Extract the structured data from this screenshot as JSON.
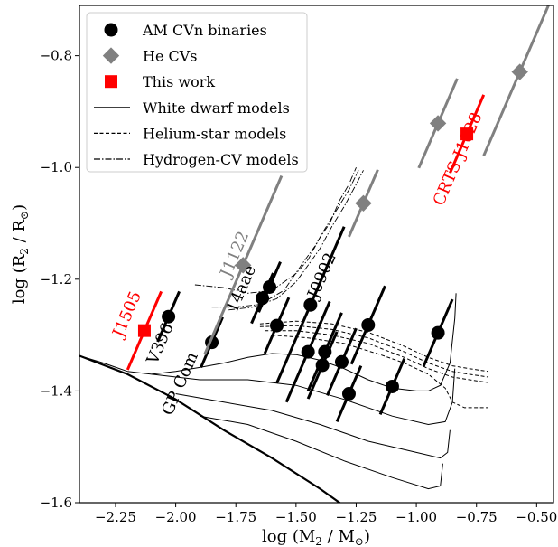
{
  "chart_data": {
    "type": "scatter",
    "xlabel": "log (M",
    "xlabel_sub": "2",
    "xlabel_mid": " / M",
    "xlabel_sub2": "⊙",
    "xlabel_end": ")",
    "ylabel": "log (R",
    "ylabel_sub": "2",
    "ylabel_mid": " / R",
    "ylabel_sub2": "⊙",
    "ylabel_end": ")",
    "xlim": [
      -2.4,
      -0.43
    ],
    "ylim": [
      -1.6,
      -0.71
    ],
    "xticks": [
      -2.25,
      -2.0,
      -1.75,
      -1.5,
      -1.25,
      -1.0,
      -0.75,
      -0.5
    ],
    "xtick_labels": [
      "−2.25",
      "−2.00",
      "−1.75",
      "−1.50",
      "−1.25",
      "−1.00",
      "−0.75",
      "−0.50"
    ],
    "yticks": [
      -1.6,
      -1.4,
      -1.2,
      -1.0,
      -0.8
    ],
    "ytick_labels": [
      "−1.6",
      "−1.4",
      "−1.2",
      "−1.0",
      "−0.8"
    ],
    "grid": false,
    "legend_position": "top-left",
    "legend": [
      {
        "label": "AM CVn binaries",
        "marker": "circle",
        "color": "#000000"
      },
      {
        "label": "He CVs",
        "marker": "diamond",
        "color": "#808080"
      },
      {
        "label": "This work",
        "marker": "square",
        "color": "#ff0000"
      },
      {
        "label": "White dwarf models",
        "line": "solid"
      },
      {
        "label": "Helium-star models",
        "line": "dashed"
      },
      {
        "label": "Hydrogen-CV models",
        "line": "dashdot"
      }
    ],
    "series": [
      {
        "name": "AM CVn binaries",
        "color": "#000000",
        "marker": "circle",
        "points": [
          {
            "x": -2.03,
            "y": -1.267,
            "err": 0.045,
            "label": "V396"
          },
          {
            "x": -1.85,
            "y": -1.313,
            "err": 0.045,
            "label": "GP Com"
          },
          {
            "x": -1.64,
            "y": -1.234,
            "err": 0.045,
            "label": "14aae"
          },
          {
            "x": -1.61,
            "y": -1.214,
            "err": 0.045
          },
          {
            "x": -1.58,
            "y": -1.283,
            "err": 0.05
          },
          {
            "x": -1.44,
            "y": -1.246,
            "err": 0.14,
            "label": "J0902"
          },
          {
            "x": -1.45,
            "y": -1.33,
            "err": 0.09
          },
          {
            "x": -1.38,
            "y": -1.33,
            "err": 0.07
          },
          {
            "x": -1.39,
            "y": -1.354,
            "err": 0.06
          },
          {
            "x": -1.31,
            "y": -1.348,
            "err": 0.06
          },
          {
            "x": -1.28,
            "y": -1.405,
            "err": 0.05
          },
          {
            "x": -1.2,
            "y": -1.282,
            "err": 0.07
          },
          {
            "x": -1.1,
            "y": -1.392,
            "err": 0.05
          },
          {
            "x": -0.91,
            "y": -1.296,
            "err": 0.06
          }
        ]
      },
      {
        "name": "He CVs",
        "color": "#808080",
        "marker": "diamond",
        "points": [
          {
            "x": -1.72,
            "y": -1.175,
            "err": 0.16,
            "label": "J1122"
          },
          {
            "x": -1.22,
            "y": -1.064,
            "err": 0.06
          },
          {
            "x": -0.91,
            "y": -0.921,
            "err": 0.08
          },
          {
            "x": -0.57,
            "y": -0.829,
            "err": 0.15
          }
        ]
      },
      {
        "name": "This work",
        "color": "#ff0000",
        "marker": "square",
        "points": [
          {
            "x": -2.13,
            "y": -1.292,
            "err": 0.07,
            "label": "J1505"
          },
          {
            "x": -0.79,
            "y": -0.94,
            "err": 0.07,
            "label": "CRTS J1028"
          }
        ]
      }
    ],
    "models": {
      "white_dwarf": [
        [
          [
            -2.4,
            -1.337
          ],
          [
            -2.2,
            -1.37
          ],
          [
            -2.0,
            -1.415
          ],
          [
            -1.8,
            -1.47
          ],
          [
            -1.6,
            -1.52
          ],
          [
            -1.4,
            -1.575
          ],
          [
            -1.27,
            -1.615
          ]
        ],
        [
          [
            -2.4,
            -1.337
          ],
          [
            -2.3,
            -1.35
          ],
          [
            -2.2,
            -1.365
          ],
          [
            -2.1,
            -1.37
          ],
          [
            -2.0,
            -1.365
          ],
          [
            -1.9,
            -1.358
          ],
          [
            -1.8,
            -1.35
          ],
          [
            -1.7,
            -1.34
          ],
          [
            -1.6,
            -1.333
          ],
          [
            -1.5,
            -1.335
          ],
          [
            -1.4,
            -1.345
          ],
          [
            -1.3,
            -1.36
          ],
          [
            -1.2,
            -1.38
          ],
          [
            -1.1,
            -1.395
          ],
          [
            -1.0,
            -1.4
          ],
          [
            -0.95,
            -1.4
          ],
          [
            -0.9,
            -1.39
          ],
          [
            -0.86,
            -1.35
          ],
          [
            -0.84,
            -1.27
          ],
          [
            -0.835,
            -1.225
          ]
        ],
        [
          [
            -2.1,
            -1.37
          ],
          [
            -1.9,
            -1.38
          ],
          [
            -1.7,
            -1.38
          ],
          [
            -1.5,
            -1.39
          ],
          [
            -1.3,
            -1.415
          ],
          [
            -1.1,
            -1.445
          ],
          [
            -0.95,
            -1.46
          ],
          [
            -0.88,
            -1.455
          ],
          [
            -0.85,
            -1.42
          ],
          [
            -0.84,
            -1.36
          ]
        ],
        [
          [
            -2.0,
            -1.405
          ],
          [
            -1.8,
            -1.42
          ],
          [
            -1.6,
            -1.435
          ],
          [
            -1.4,
            -1.46
          ],
          [
            -1.2,
            -1.49
          ],
          [
            -1.0,
            -1.51
          ],
          [
            -0.9,
            -1.52
          ],
          [
            -0.87,
            -1.51
          ],
          [
            -0.86,
            -1.47
          ]
        ],
        [
          [
            -1.9,
            -1.445
          ],
          [
            -1.7,
            -1.46
          ],
          [
            -1.5,
            -1.49
          ],
          [
            -1.3,
            -1.525
          ],
          [
            -1.1,
            -1.555
          ],
          [
            -0.95,
            -1.575
          ],
          [
            -0.9,
            -1.57
          ],
          [
            -0.89,
            -1.53
          ]
        ]
      ],
      "helium_star": [
        [
          [
            -1.65,
            -1.28
          ],
          [
            -1.5,
            -1.275
          ],
          [
            -1.35,
            -1.28
          ],
          [
            -1.2,
            -1.295
          ],
          [
            -1.05,
            -1.32
          ],
          [
            -0.95,
            -1.34
          ],
          [
            -0.85,
            -1.355
          ],
          [
            -0.78,
            -1.36
          ],
          [
            -0.7,
            -1.365
          ]
        ],
        [
          [
            -1.65,
            -1.285
          ],
          [
            -1.5,
            -1.283
          ],
          [
            -1.35,
            -1.29
          ],
          [
            -1.2,
            -1.305
          ],
          [
            -1.05,
            -1.33
          ],
          [
            -0.95,
            -1.35
          ],
          [
            -0.85,
            -1.365
          ],
          [
            -0.78,
            -1.37
          ],
          [
            -0.7,
            -1.375
          ]
        ],
        [
          [
            -1.63,
            -1.292
          ],
          [
            -1.5,
            -1.292
          ],
          [
            -1.35,
            -1.3
          ],
          [
            -1.2,
            -1.315
          ],
          [
            -1.05,
            -1.34
          ],
          [
            -0.95,
            -1.36
          ],
          [
            -0.85,
            -1.375
          ],
          [
            -0.78,
            -1.38
          ],
          [
            -0.7,
            -1.385
          ]
        ],
        [
          [
            -1.6,
            -1.3
          ],
          [
            -1.45,
            -1.305
          ],
          [
            -1.3,
            -1.315
          ],
          [
            -1.15,
            -1.335
          ],
          [
            -1.05,
            -1.35
          ],
          [
            -0.95,
            -1.37
          ],
          [
            -0.88,
            -1.395
          ],
          [
            -0.85,
            -1.42
          ],
          [
            -0.8,
            -1.43
          ],
          [
            -0.7,
            -1.43
          ]
        ]
      ],
      "hydrogen_cv": [
        [
          [
            -1.92,
            -1.21
          ],
          [
            -1.8,
            -1.215
          ],
          [
            -1.7,
            -1.225
          ],
          [
            -1.6,
            -1.22
          ],
          [
            -1.5,
            -1.19
          ],
          [
            -1.45,
            -1.165
          ],
          [
            -1.4,
            -1.125
          ],
          [
            -1.36,
            -1.1
          ],
          [
            -1.32,
            -1.06
          ],
          [
            -1.28,
            -1.03
          ],
          [
            -1.25,
            -1.0
          ]
        ],
        [
          [
            -1.85,
            -1.25
          ],
          [
            -1.75,
            -1.25
          ],
          [
            -1.65,
            -1.245
          ],
          [
            -1.55,
            -1.22
          ],
          [
            -1.47,
            -1.17
          ],
          [
            -1.42,
            -1.14
          ],
          [
            -1.38,
            -1.11
          ],
          [
            -1.33,
            -1.075
          ],
          [
            -1.28,
            -1.04
          ],
          [
            -1.24,
            -1.005
          ]
        ],
        [
          [
            -1.78,
            -1.255
          ],
          [
            -1.68,
            -1.25
          ],
          [
            -1.58,
            -1.235
          ],
          [
            -1.5,
            -1.205
          ],
          [
            -1.45,
            -1.175
          ],
          [
            -1.4,
            -1.145
          ],
          [
            -1.35,
            -1.105
          ],
          [
            -1.3,
            -1.07
          ],
          [
            -1.25,
            -1.03
          ],
          [
            -1.22,
            -1.005
          ]
        ]
      ]
    }
  }
}
